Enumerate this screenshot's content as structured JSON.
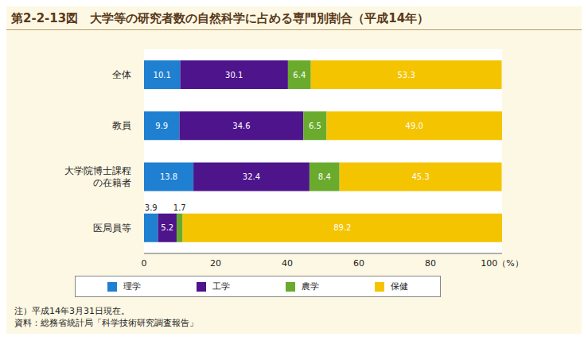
{
  "chart_data": {
    "type": "bar",
    "orientation": "horizontal",
    "stacked": true,
    "data_labels": true,
    "grid": false,
    "legend": "bottom",
    "title": "第2-2-13図　大学等の研究者数の自然科学に占める専門別割合（平成14年）",
    "annotations": [
      "注）平成14年3月31日現在。",
      "資料：総務省統計局「科学技術研究調査報告」"
    ],
    "categories": [
      "全体",
      "教員",
      "大学院博士課程\nの在籍者",
      "医局員等"
    ],
    "xlim": [
      0,
      100
    ],
    "xticks": [
      0,
      20,
      40,
      60,
      80,
      {
        "value": 100,
        "label": "100（%）"
      }
    ],
    "series": [
      {
        "name": "理学",
        "color": "#1f7fd0",
        "values": [
          10.1,
          9.9,
          13.8,
          3.9
        ]
      },
      {
        "name": "工学",
        "color": "#4e148c",
        "values": [
          30.1,
          34.6,
          32.4,
          5.2
        ]
      },
      {
        "name": "農学",
        "color": "#6aab2e",
        "values": [
          6.4,
          6.5,
          8.4,
          1.7
        ]
      },
      {
        "name": "保健",
        "color": "#f5c400",
        "values": [
          53.3,
          49,
          45.3,
          89.2
        ],
        "value_labels": [
          "53.3",
          "49.0",
          "45.3",
          "89.2"
        ]
      }
    ]
  }
}
